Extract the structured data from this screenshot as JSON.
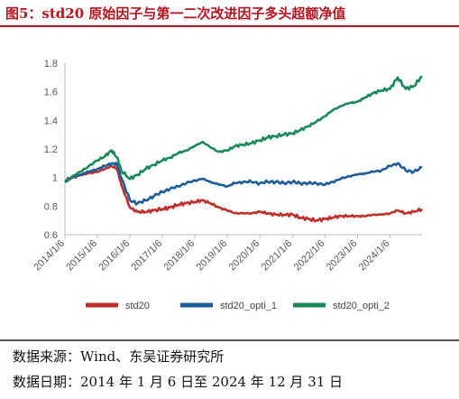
{
  "figure": {
    "title": "图5：std20 原始因子与第一二次改进因子多头超额净值",
    "source_note": "数据来源：Wind、东吴证券研究所",
    "date_note": "数据日期：2014 年 1 月 6 日至 2024 年 12 月 31 日"
  },
  "chart_data": {
    "type": "line",
    "title": "",
    "xlabel": "",
    "ylabel": "",
    "ylim": [
      0.6,
      1.8
    ],
    "yticks": [
      "0.6",
      "0.8",
      "1",
      "1.2",
      "1.4",
      "1.6",
      "1.8"
    ],
    "xticks": [
      "2014/1/6",
      "2015/1/6",
      "2016/1/6",
      "2017/1/6",
      "2018/1/6",
      "2019/1/6",
      "2020/1/6",
      "2021/1/6",
      "2022/1/6",
      "2023/1/6",
      "2024/1/6"
    ],
    "x": [
      "2014/1/6",
      "2014/4/1",
      "2014/7/1",
      "2014/10/1",
      "2015/1/6",
      "2015/4/1",
      "2015/6/15",
      "2015/8/15",
      "2015/10/1",
      "2016/1/6",
      "2016/4/1",
      "2016/7/1",
      "2016/10/1",
      "2017/1/6",
      "2017/4/1",
      "2017/7/1",
      "2017/10/1",
      "2018/1/6",
      "2018/4/1",
      "2018/7/1",
      "2018/10/1",
      "2019/1/6",
      "2019/4/1",
      "2019/7/1",
      "2019/10/1",
      "2020/1/6",
      "2020/4/1",
      "2020/7/1",
      "2020/10/1",
      "2021/1/6",
      "2021/4/1",
      "2021/7/1",
      "2021/10/1",
      "2022/1/6",
      "2022/4/1",
      "2022/7/1",
      "2022/10/1",
      "2023/1/6",
      "2023/4/1",
      "2023/7/1",
      "2023/10/1",
      "2024/1/6",
      "2024/4/1",
      "2024/7/1",
      "2024/10/1",
      "2024/12/31"
    ],
    "legend_position": "bottom",
    "series": [
      {
        "name": "std20",
        "color": "#c0302b",
        "values": [
          0.98,
          1.0,
          1.02,
          1.03,
          1.04,
          1.06,
          1.08,
          1.06,
          0.95,
          0.79,
          0.76,
          0.76,
          0.77,
          0.78,
          0.79,
          0.81,
          0.82,
          0.83,
          0.84,
          0.82,
          0.79,
          0.77,
          0.75,
          0.75,
          0.75,
          0.76,
          0.75,
          0.74,
          0.74,
          0.74,
          0.72,
          0.71,
          0.7,
          0.71,
          0.72,
          0.73,
          0.73,
          0.73,
          0.73,
          0.74,
          0.74,
          0.75,
          0.77,
          0.75,
          0.76,
          0.78
        ]
      },
      {
        "name": "std20_opti_1",
        "color": "#1c5d99",
        "values": [
          0.97,
          1.0,
          1.02,
          1.04,
          1.06,
          1.08,
          1.1,
          1.09,
          1.0,
          0.84,
          0.82,
          0.84,
          0.87,
          0.9,
          0.92,
          0.94,
          0.96,
          0.98,
          0.99,
          0.97,
          0.95,
          0.94,
          0.96,
          0.97,
          0.97,
          0.96,
          0.97,
          0.97,
          0.96,
          0.97,
          0.96,
          0.96,
          0.96,
          0.95,
          0.97,
          0.99,
          1.01,
          1.02,
          1.03,
          1.04,
          1.05,
          1.08,
          1.1,
          1.05,
          1.04,
          1.07
        ]
      },
      {
        "name": "std20_opti_2",
        "color": "#198a57",
        "values": [
          0.97,
          1.01,
          1.04,
          1.08,
          1.12,
          1.15,
          1.19,
          1.14,
          1.05,
          0.99,
          1.02,
          1.06,
          1.09,
          1.12,
          1.14,
          1.17,
          1.19,
          1.22,
          1.25,
          1.21,
          1.18,
          1.19,
          1.22,
          1.23,
          1.24,
          1.26,
          1.28,
          1.29,
          1.3,
          1.31,
          1.33,
          1.36,
          1.39,
          1.43,
          1.47,
          1.5,
          1.52,
          1.53,
          1.56,
          1.59,
          1.61,
          1.62,
          1.7,
          1.62,
          1.64,
          1.71
        ]
      }
    ]
  }
}
